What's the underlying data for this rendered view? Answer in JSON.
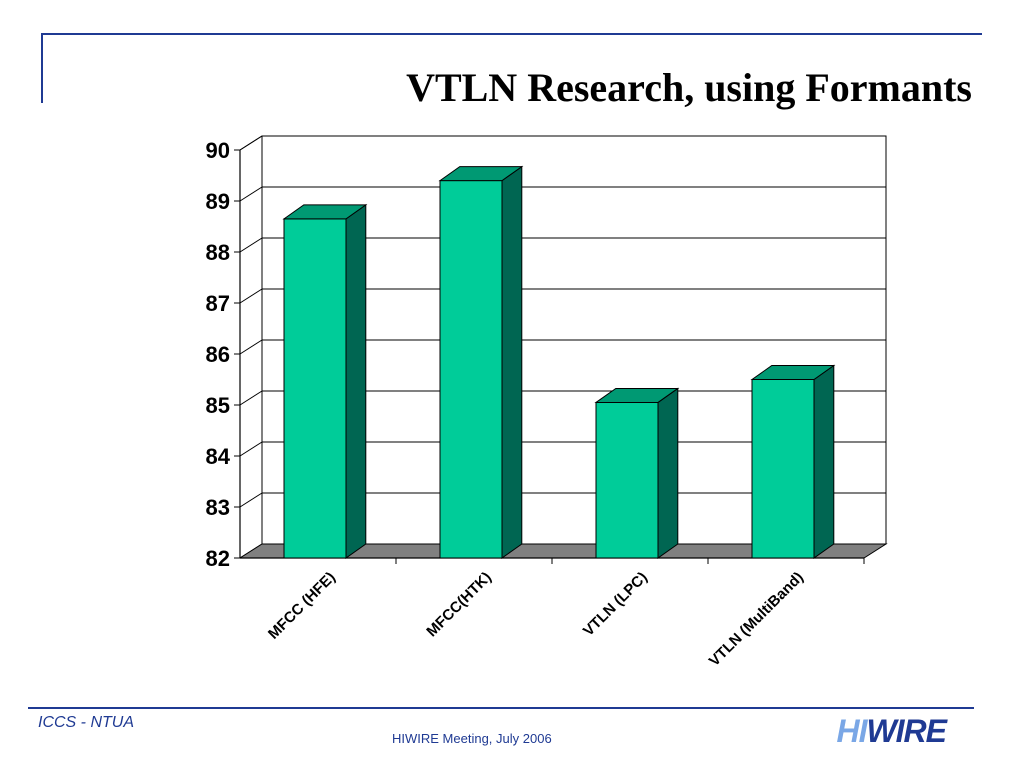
{
  "slide": {
    "title": "VTLN Research, using Formants",
    "footer_org": "ICCS - NTUA",
    "footer_meeting": "HIWIRE Meeting, July 2006",
    "brand_hi": "HI",
    "brand_wire": "WIRE"
  },
  "colors": {
    "bar_front": "#00cc99",
    "bar_side": "#006652",
    "bar_top": "#009973",
    "floor": "#808080",
    "accent": "#1f3a93"
  },
  "chart_data": {
    "type": "bar",
    "title": "",
    "xlabel": "",
    "ylabel": "",
    "categories": [
      "MFCC (HFE)",
      "MFCC(HTK)",
      "VTLN (LPC)",
      "VTLN (MultiBand)"
    ],
    "values": [
      88.65,
      89.4,
      85.05,
      85.5
    ],
    "ylim": [
      82,
      90
    ],
    "yticks": [
      82,
      83,
      84,
      85,
      86,
      87,
      88,
      89,
      90
    ],
    "grid": true,
    "legend": "none",
    "style": "3d"
  }
}
